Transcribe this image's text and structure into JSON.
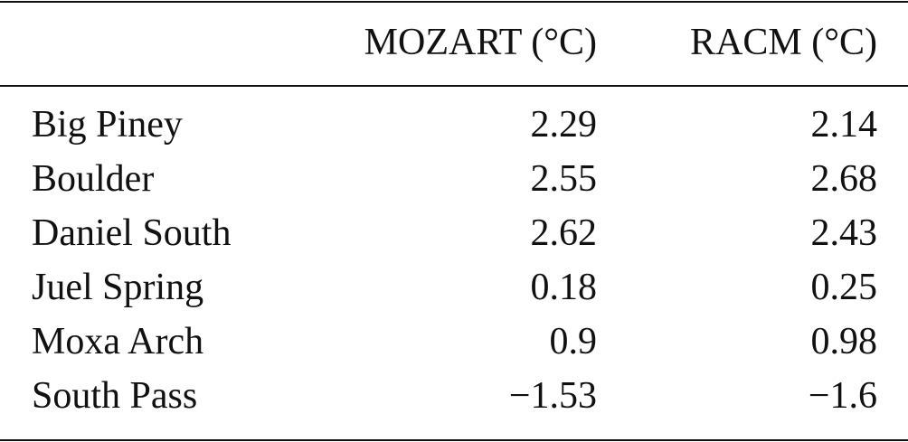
{
  "table": {
    "columns": [
      "MOZART (°C)",
      "RACM (°C)"
    ],
    "rows": [
      [
        "Big Piney",
        "2.29",
        "2.14"
      ],
      [
        "Boulder",
        "2.55",
        "2.68"
      ],
      [
        "Daniel South",
        "2.62",
        "2.43"
      ],
      [
        "Juel Spring",
        "0.18",
        "0.25"
      ],
      [
        "Moxa Arch",
        "0.9",
        "0.98"
      ],
      [
        "South Pass",
        "−1.53",
        "−1.6"
      ]
    ]
  }
}
